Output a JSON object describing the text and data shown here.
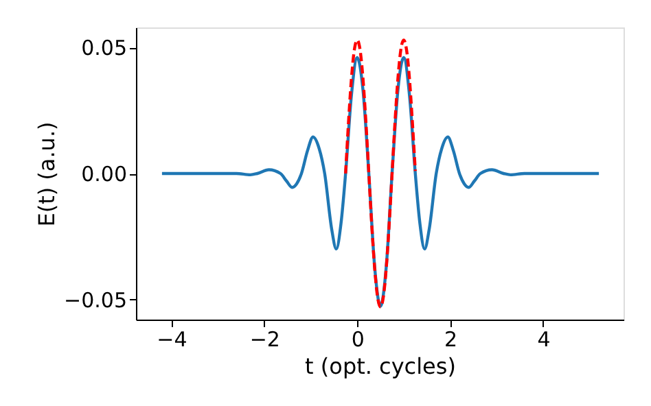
{
  "chart_data": {
    "type": "line",
    "xlabel": "t (opt. cycles)",
    "ylabel": "E(t) (a.u.)",
    "xlim": [
      -4.76,
      5.73
    ],
    "ylim": [
      -0.058,
      0.058
    ],
    "xticks": [
      {
        "value": -4,
        "label": "−4"
      },
      {
        "value": -2,
        "label": "−2"
      },
      0,
      2,
      4
    ],
    "yticks": [
      {
        "value": -0.05,
        "label": "−0.05"
      },
      {
        "value": 0,
        "label": "0.00"
      },
      0.05
    ],
    "grid": false,
    "legend": false,
    "series": [
      {
        "color": "#1f77b4",
        "line_style": "solid",
        "x": [
          -4.2,
          -2.6,
          -2.3,
          -2.15,
          -1.9,
          -1.65,
          -1.52,
          -1.4,
          -1.3,
          -1.2,
          -1.07,
          -0.95,
          -0.82,
          -0.7,
          -0.55,
          -0.45,
          -0.35,
          -0.25,
          -0.125,
          0,
          0.125,
          0.25,
          0.375,
          0.5,
          0.625,
          0.75,
          0.875,
          1,
          1.125,
          1.25,
          1.35,
          1.45,
          1.55,
          1.7,
          1.82,
          1.95,
          2.07,
          2.2,
          2.3,
          2.4,
          2.52,
          2.65,
          2.9,
          3.15,
          3.3,
          3.6,
          5.2
        ],
        "values": [
          0,
          0,
          -0.0005,
          0,
          0.0015,
          0,
          -0.003,
          -0.0055,
          -0.004,
          0,
          0.009,
          0.0145,
          0.01,
          0,
          -0.022,
          -0.03,
          -0.02,
          0,
          0.031,
          0.046,
          0.033,
          0,
          -0.037,
          -0.0527,
          -0.037,
          0,
          0.033,
          0.046,
          0.031,
          0,
          -0.02,
          -0.03,
          -0.022,
          0,
          0.01,
          0.0145,
          0.009,
          0,
          -0.004,
          -0.0055,
          -0.003,
          0,
          0.0015,
          0,
          -0.0005,
          0,
          0
        ]
      },
      {
        "color": "#ff0000",
        "line_style": "dashed",
        "x": [
          -0.25,
          -0.1875,
          -0.125,
          -0.0625,
          0,
          0.0625,
          0.125,
          0.1875,
          0.25,
          0.3125,
          0.375,
          0.4375,
          0.5,
          0.5625,
          0.625,
          0.6875,
          0.75,
          0.8125,
          0.875,
          0.9375,
          1,
          1.0625,
          1.125,
          1.1875,
          1.25
        ],
        "values": [
          0,
          0.0203,
          0.0375,
          0.049,
          0.053,
          0.049,
          0.0375,
          0.0203,
          0,
          -0.0203,
          -0.0375,
          -0.049,
          -0.053,
          -0.049,
          -0.0375,
          -0.0203,
          0,
          0.0203,
          0.0375,
          0.049,
          0.053,
          0.049,
          0.0375,
          0.0203,
          0.001
        ]
      }
    ]
  }
}
